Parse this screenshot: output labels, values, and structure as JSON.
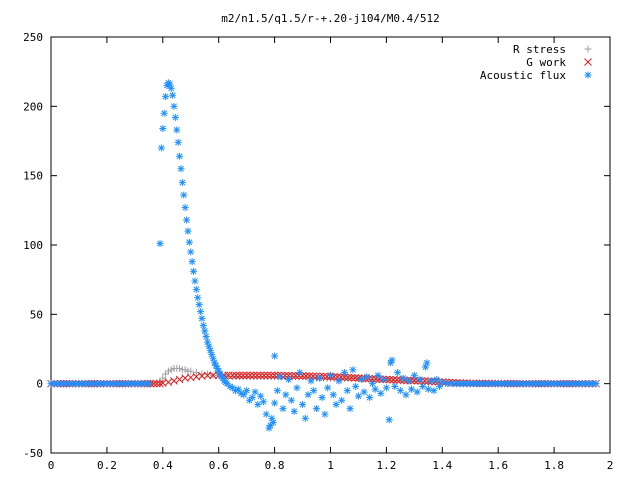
{
  "chart_data": {
    "type": "scatter",
    "title": "m2/n1.5/q1.5/r-+.20-j104/M0.4/512",
    "xlabel": "",
    "ylabel": "",
    "xlim": [
      0,
      2
    ],
    "ylim": [
      -50,
      250
    ],
    "x_ticks": [
      "0",
      "0.2",
      "0.4",
      "0.6",
      "0.8",
      "1",
      "1.2",
      "1.4",
      "1.6",
      "1.8",
      "2"
    ],
    "y_ticks": [
      "-50",
      "0",
      "50",
      "100",
      "150",
      "200",
      "250"
    ],
    "legend_position": "top-right",
    "grid": false,
    "series": [
      {
        "name": "R stress",
        "marker": "plus",
        "color": "#a0a0a0",
        "points": [
          [
            0.0,
            0
          ],
          [
            0.05,
            0
          ],
          [
            0.1,
            0
          ],
          [
            0.15,
            0
          ],
          [
            0.2,
            0
          ],
          [
            0.25,
            0
          ],
          [
            0.3,
            0
          ],
          [
            0.35,
            0
          ],
          [
            0.39,
            1
          ],
          [
            0.4,
            4
          ],
          [
            0.41,
            7
          ],
          [
            0.42,
            9
          ],
          [
            0.43,
            10
          ],
          [
            0.44,
            11
          ],
          [
            0.45,
            11
          ],
          [
            0.46,
            11
          ],
          [
            0.47,
            10
          ],
          [
            0.48,
            10
          ],
          [
            0.49,
            9
          ],
          [
            0.5,
            9
          ],
          [
            0.52,
            8
          ],
          [
            0.54,
            7
          ],
          [
            0.56,
            7
          ],
          [
            0.58,
            6
          ],
          [
            0.6,
            6
          ],
          [
            0.62,
            6
          ],
          [
            0.65,
            5
          ],
          [
            0.7,
            5
          ],
          [
            0.75,
            5
          ],
          [
            0.8,
            5
          ],
          [
            0.85,
            5
          ],
          [
            0.9,
            5
          ],
          [
            0.95,
            4
          ],
          [
            1.0,
            4
          ],
          [
            1.05,
            4
          ],
          [
            1.1,
            4
          ],
          [
            1.15,
            3
          ],
          [
            1.2,
            3
          ],
          [
            1.25,
            2
          ],
          [
            1.3,
            2
          ],
          [
            1.35,
            1
          ],
          [
            1.4,
            1
          ],
          [
            1.45,
            0
          ],
          [
            1.5,
            0
          ],
          [
            1.6,
            0
          ],
          [
            1.7,
            0
          ],
          [
            1.8,
            0
          ],
          [
            1.9,
            0
          ],
          [
            1.95,
            0
          ]
        ]
      },
      {
        "name": "G work",
        "marker": "cross",
        "color": "#e41a1c",
        "points": [
          [
            0.0,
            0
          ],
          [
            0.1,
            0
          ],
          [
            0.2,
            0
          ],
          [
            0.3,
            0
          ],
          [
            0.39,
            0
          ],
          [
            0.4,
            0.5
          ],
          [
            0.42,
            1
          ],
          [
            0.44,
            2
          ],
          [
            0.46,
            3
          ],
          [
            0.48,
            4
          ],
          [
            0.5,
            4.5
          ],
          [
            0.52,
            5
          ],
          [
            0.54,
            5.5
          ],
          [
            0.56,
            6
          ],
          [
            0.58,
            6
          ],
          [
            0.6,
            6
          ],
          [
            0.62,
            6
          ],
          [
            0.65,
            6
          ],
          [
            0.7,
            6
          ],
          [
            0.75,
            6
          ],
          [
            0.8,
            6
          ],
          [
            0.85,
            5.8
          ],
          [
            0.9,
            5.6
          ],
          [
            0.95,
            5.4
          ],
          [
            1.0,
            5
          ],
          [
            1.05,
            4.6
          ],
          [
            1.1,
            4
          ],
          [
            1.15,
            3.5
          ],
          [
            1.2,
            3
          ],
          [
            1.25,
            2.6
          ],
          [
            1.3,
            2.2
          ],
          [
            1.35,
            1.8
          ],
          [
            1.4,
            1.2
          ],
          [
            1.45,
            0.6
          ],
          [
            1.5,
            0.3
          ],
          [
            1.6,
            0.1
          ],
          [
            1.7,
            0
          ],
          [
            1.8,
            0
          ],
          [
            1.9,
            0
          ],
          [
            1.95,
            0
          ]
        ]
      },
      {
        "name": "Acoustic flux",
        "marker": "star",
        "color": "#1e90ff",
        "points": [
          [
            0.0,
            0
          ],
          [
            0.05,
            0
          ],
          [
            0.1,
            0
          ],
          [
            0.15,
            0
          ],
          [
            0.2,
            0
          ],
          [
            0.25,
            0
          ],
          [
            0.3,
            0
          ],
          [
            0.35,
            0
          ],
          [
            0.39,
            101
          ],
          [
            0.395,
            170
          ],
          [
            0.4,
            184
          ],
          [
            0.405,
            195
          ],
          [
            0.41,
            207
          ],
          [
            0.415,
            215
          ],
          [
            0.42,
            217
          ],
          [
            0.425,
            216
          ],
          [
            0.43,
            213
          ],
          [
            0.435,
            208
          ],
          [
            0.44,
            200
          ],
          [
            0.445,
            192
          ],
          [
            0.45,
            183
          ],
          [
            0.455,
            174
          ],
          [
            0.46,
            164
          ],
          [
            0.465,
            155
          ],
          [
            0.47,
            145
          ],
          [
            0.475,
            136
          ],
          [
            0.48,
            127
          ],
          [
            0.485,
            118
          ],
          [
            0.49,
            110
          ],
          [
            0.495,
            102
          ],
          [
            0.5,
            95
          ],
          [
            0.505,
            88
          ],
          [
            0.51,
            81
          ],
          [
            0.515,
            74
          ],
          [
            0.52,
            68
          ],
          [
            0.525,
            62
          ],
          [
            0.53,
            57
          ],
          [
            0.535,
            52
          ],
          [
            0.54,
            47
          ],
          [
            0.545,
            42
          ],
          [
            0.55,
            38
          ],
          [
            0.555,
            34
          ],
          [
            0.56,
            30
          ],
          [
            0.565,
            27
          ],
          [
            0.57,
            24
          ],
          [
            0.575,
            21
          ],
          [
            0.58,
            18
          ],
          [
            0.585,
            15
          ],
          [
            0.59,
            13
          ],
          [
            0.595,
            11
          ],
          [
            0.6,
            9
          ],
          [
            0.605,
            7
          ],
          [
            0.61,
            5
          ],
          [
            0.615,
            4
          ],
          [
            0.62,
            2
          ],
          [
            0.625,
            1
          ],
          [
            0.63,
            0
          ],
          [
            0.64,
            -2
          ],
          [
            0.65,
            -3
          ],
          [
            0.66,
            -5
          ],
          [
            0.67,
            -4
          ],
          [
            0.68,
            -7
          ],
          [
            0.69,
            -8
          ],
          [
            0.7,
            -5
          ],
          [
            0.71,
            -12
          ],
          [
            0.72,
            -10
          ],
          [
            0.73,
            -6
          ],
          [
            0.74,
            -15
          ],
          [
            0.75,
            -9
          ],
          [
            0.76,
            -13
          ],
          [
            0.77,
            -22
          ],
          [
            0.78,
            -32
          ],
          [
            0.785,
            -30
          ],
          [
            0.79,
            -25
          ],
          [
            0.795,
            -28
          ],
          [
            0.8,
            -14
          ],
          [
            0.8,
            20
          ],
          [
            0.81,
            -5
          ],
          [
            0.82,
            5
          ],
          [
            0.83,
            -18
          ],
          [
            0.84,
            -8
          ],
          [
            0.85,
            3
          ],
          [
            0.86,
            -12
          ],
          [
            0.87,
            -20
          ],
          [
            0.88,
            -3
          ],
          [
            0.89,
            8
          ],
          [
            0.9,
            -15
          ],
          [
            0.91,
            -25
          ],
          [
            0.92,
            -8
          ],
          [
            0.93,
            2
          ],
          [
            0.94,
            -5
          ],
          [
            0.95,
            -18
          ],
          [
            0.96,
            4
          ],
          [
            0.97,
            -10
          ],
          [
            0.98,
            -22
          ],
          [
            0.99,
            -3
          ],
          [
            1.0,
            6
          ],
          [
            1.01,
            -8
          ],
          [
            1.02,
            -15
          ],
          [
            1.03,
            2
          ],
          [
            1.04,
            -12
          ],
          [
            1.05,
            8
          ],
          [
            1.06,
            -5
          ],
          [
            1.07,
            -18
          ],
          [
            1.08,
            10
          ],
          [
            1.09,
            -2
          ],
          [
            1.1,
            -9
          ],
          [
            1.11,
            3
          ],
          [
            1.12,
            -6
          ],
          [
            1.13,
            5
          ],
          [
            1.14,
            -10
          ],
          [
            1.15,
            0
          ],
          [
            1.16,
            -4
          ],
          [
            1.17,
            6
          ],
          [
            1.18,
            -7
          ],
          [
            1.19,
            3
          ],
          [
            1.2,
            -3
          ],
          [
            1.21,
            -26
          ],
          [
            1.215,
            15
          ],
          [
            1.22,
            17
          ],
          [
            1.23,
            -2
          ],
          [
            1.24,
            8
          ],
          [
            1.25,
            -5
          ],
          [
            1.26,
            4
          ],
          [
            1.27,
            -8
          ],
          [
            1.28,
            2
          ],
          [
            1.29,
            -4
          ],
          [
            1.3,
            6
          ],
          [
            1.31,
            -6
          ],
          [
            1.32,
            3
          ],
          [
            1.33,
            -2
          ],
          [
            1.34,
            12
          ],
          [
            1.345,
            15
          ],
          [
            1.35,
            -4
          ],
          [
            1.36,
            2
          ],
          [
            1.37,
            -5
          ],
          [
            1.38,
            3
          ],
          [
            1.39,
            -2
          ],
          [
            1.4,
            1
          ],
          [
            1.42,
            0
          ],
          [
            1.45,
            0
          ],
          [
            1.5,
            0
          ],
          [
            1.55,
            0
          ],
          [
            1.6,
            0
          ],
          [
            1.65,
            0
          ],
          [
            1.7,
            0
          ],
          [
            1.75,
            0
          ],
          [
            1.8,
            0
          ],
          [
            1.85,
            0
          ],
          [
            1.9,
            0
          ],
          [
            1.95,
            0
          ]
        ]
      }
    ]
  }
}
